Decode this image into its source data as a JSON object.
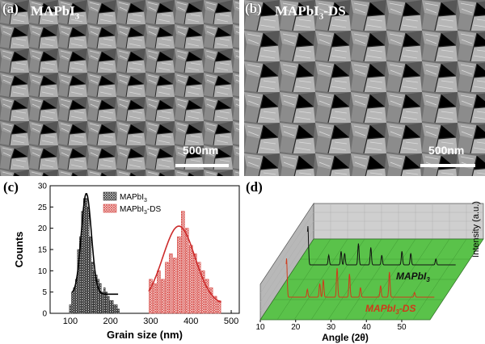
{
  "panels": {
    "a": {
      "label": "(a)",
      "title": "MAPbI",
      "title_sub": "3",
      "title_suffix": "",
      "scale": "500nm"
    },
    "b": {
      "label": "(b)",
      "title": "MAPbI",
      "title_sub": "3",
      "title_suffix": "-DS",
      "scale": "500nm"
    },
    "c": {
      "label": "(c)"
    },
    "d": {
      "label": "(d)"
    }
  },
  "chart_data": [
    {
      "type": "bar",
      "panel": "c",
      "title": "",
      "xlabel": "Grain size (nm)",
      "ylabel": "Counts",
      "xlim": [
        50,
        520
      ],
      "ylim": [
        0,
        30
      ],
      "xticks": [
        100,
        200,
        300,
        400,
        500
      ],
      "yticks": [
        0,
        5,
        10,
        15,
        20,
        25,
        30
      ],
      "legend_position": "top-center",
      "series": [
        {
          "name": "MAPbI3",
          "legend_main": "MAPbI",
          "legend_sub": "3",
          "legend_suffix": "",
          "color": "#333333",
          "fit_color": "#000000",
          "x": [
            100,
            105,
            110,
            115,
            120,
            125,
            130,
            135,
            140,
            145,
            150,
            155,
            160,
            165,
            170,
            175,
            180,
            185,
            190,
            195,
            200,
            205,
            210,
            215,
            220
          ],
          "values": [
            2,
            5,
            6,
            8,
            15,
            18,
            24,
            27,
            27,
            25,
            18,
            12,
            10,
            9,
            8,
            7,
            5,
            6,
            5,
            4,
            3,
            3,
            2,
            2,
            1
          ],
          "fit": {
            "amplitude": 23.7,
            "center": 140,
            "sigma": 12.5,
            "offset": 4.5,
            "range": [
              105,
              220
            ]
          }
        },
        {
          "name": "MAPbI3-DS",
          "legend_main": "MAPbI",
          "legend_sub": "3",
          "legend_suffix": "-DS",
          "color": "#d9534f",
          "fit_color": "#cc2b2b",
          "x": [
            300,
            310,
            320,
            330,
            340,
            350,
            360,
            370,
            380,
            390,
            400,
            410,
            420,
            430,
            440,
            450,
            460,
            470
          ],
          "values": [
            8,
            7,
            10,
            8,
            12,
            14,
            13,
            18,
            24,
            20,
            16,
            14,
            12,
            10,
            8,
            6,
            4,
            3
          ],
          "fit": {
            "amplitude": 18.5,
            "center": 370,
            "sigma": 40,
            "offset": 2,
            "range": [
              295,
              475
            ]
          }
        }
      ]
    },
    {
      "type": "line",
      "panel": "d",
      "title": "",
      "xlabel": "Angle (2θ)",
      "ylabel": "Intensity (a.u.)",
      "xlim": [
        10,
        58
      ],
      "xticks": [
        10,
        20,
        30,
        40,
        50
      ],
      "series": [
        {
          "name": "MAPbI3",
          "label_main": "MAPbI",
          "label_sub": "3",
          "label_suffix": "",
          "color": "#111111",
          "peaks": [
            [
              14.1,
              1.0
            ],
            [
              20.0,
              0.25
            ],
            [
              23.5,
              0.35
            ],
            [
              24.5,
              0.3
            ],
            [
              28.4,
              0.55
            ],
            [
              31.9,
              0.45
            ],
            [
              35.0,
              0.25
            ],
            [
              40.7,
              0.35
            ],
            [
              43.2,
              0.3
            ],
            [
              50.3,
              0.15
            ]
          ]
        },
        {
          "name": "MAPbI3-DS",
          "label_main": "MAPbI",
          "label_sub": "3",
          "label_suffix": "-DS",
          "color": "#d03a1a",
          "peaks": [
            [
              14.1,
              1.0
            ],
            [
              20.0,
              0.2
            ],
            [
              23.5,
              0.35
            ],
            [
              24.5,
              0.45
            ],
            [
              28.4,
              0.75
            ],
            [
              31.9,
              0.6
            ],
            [
              35.0,
              0.25
            ],
            [
              40.7,
              0.3
            ],
            [
              43.2,
              0.65
            ],
            [
              50.3,
              0.12
            ]
          ]
        }
      ],
      "colors": {
        "floor": "#5ac24a",
        "back_wall": "#cfcfcf",
        "side_wall": "#b8b8b8"
      }
    }
  ]
}
